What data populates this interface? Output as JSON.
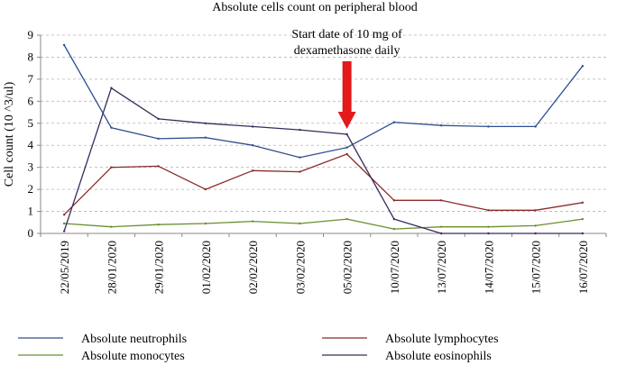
{
  "chart_data": {
    "type": "line",
    "title": "Absolute cells count on peripheral blood",
    "xlabel": "",
    "ylabel": "Cell count (10 ^3/ul)",
    "ylim": [
      0,
      9
    ],
    "yticks": [
      0,
      1,
      2,
      3,
      4,
      5,
      6,
      7,
      8,
      9
    ],
    "grid": "horizontal dashed",
    "categories": [
      "22/05/2019",
      "28/01/2020",
      "29/01/2020",
      "01/02/2020",
      "02/02/2020",
      "03/02/2020",
      "05/02/2020",
      "10/07/2020",
      "13/07/2020",
      "14/07/2020",
      "15/07/2020",
      "16/07/2020"
    ],
    "series": [
      {
        "name": "Absolute neutrophils",
        "color": "#2e4f8f",
        "values": [
          8.55,
          4.8,
          4.3,
          4.35,
          4.0,
          3.45,
          3.9,
          5.05,
          4.9,
          4.85,
          4.85,
          7.6
        ]
      },
      {
        "name": "Absolute lymphocytes",
        "color": "#8b2a2a",
        "values": [
          0.85,
          3.0,
          3.05,
          2.0,
          2.85,
          2.8,
          3.6,
          1.5,
          1.5,
          1.05,
          1.05,
          1.4
        ]
      },
      {
        "name": "Absolute monocytes",
        "color": "#6b8e2e",
        "values": [
          0.45,
          0.3,
          0.4,
          0.45,
          0.55,
          0.45,
          0.65,
          0.2,
          0.3,
          0.3,
          0.35,
          0.65
        ]
      },
      {
        "name": "Absolute eosinophils",
        "color": "#3b2a5c",
        "values": [
          0.1,
          6.6,
          5.2,
          5.0,
          4.85,
          4.7,
          4.5,
          0.65,
          0.0,
          0.0,
          0.0,
          0.0
        ]
      }
    ],
    "annotation": {
      "lines": [
        "Start date of 10 mg of",
        "dexamethasone daily"
      ],
      "arrow_color": "#e3191b",
      "category": "05/02/2020"
    },
    "legend": {
      "placement": "bottom",
      "entries": [
        "Absolute neutrophils",
        "Absolute lymphocytes",
        "Absolute monocytes",
        "Absolute eosinophils"
      ]
    }
  }
}
